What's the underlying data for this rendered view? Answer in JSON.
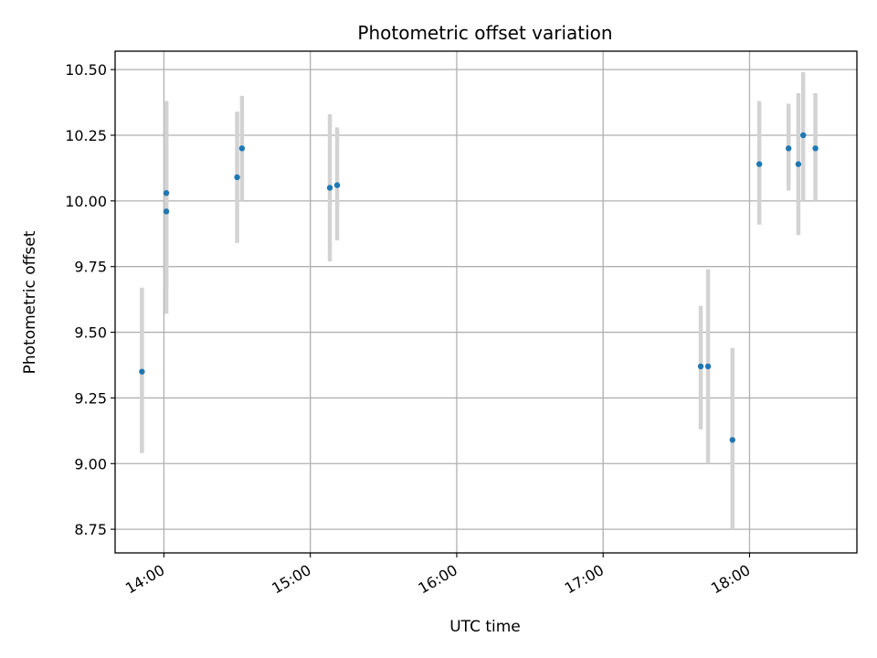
{
  "chart_data": {
    "type": "scatter",
    "title": "Photometric offset variation",
    "xlabel": "UTC time",
    "ylabel": "Photometric offset",
    "x_axis_type": "time",
    "xlim": [
      "13:40",
      "18:44"
    ],
    "ylim": [
      8.66,
      10.57
    ],
    "x_ticks": [
      "14:00",
      "15:00",
      "16:00",
      "17:00",
      "18:00"
    ],
    "y_ticks": [
      "8.75",
      "9.00",
      "9.25",
      "9.50",
      "9.75",
      "10.00",
      "10.25",
      "10.50"
    ],
    "grid": true,
    "marker_color": "#1f77b4",
    "errorbar_color": "#d3d3d3",
    "series": [
      {
        "points": [
          {
            "x": "13:51",
            "y": 9.35,
            "yerr_low": 9.04,
            "yerr_high": 9.67
          },
          {
            "x": "14:01",
            "y": 9.96,
            "yerr_low": 9.57,
            "yerr_high": 10.38
          },
          {
            "x": "14:01",
            "y": 10.03,
            "yerr_low": 9.67,
            "yerr_high": 10.38
          },
          {
            "x": "14:30",
            "y": 10.09,
            "yerr_low": 9.84,
            "yerr_high": 10.34
          },
          {
            "x": "14:32",
            "y": 10.2,
            "yerr_low": 10.0,
            "yerr_high": 10.4
          },
          {
            "x": "15:08",
            "y": 10.05,
            "yerr_low": 9.77,
            "yerr_high": 10.33
          },
          {
            "x": "15:11",
            "y": 10.06,
            "yerr_low": 9.85,
            "yerr_high": 10.28
          },
          {
            "x": "17:40",
            "y": 9.37,
            "yerr_low": 9.13,
            "yerr_high": 9.6
          },
          {
            "x": "17:43",
            "y": 9.37,
            "yerr_low": 9.0,
            "yerr_high": 9.74
          },
          {
            "x": "17:53",
            "y": 9.09,
            "yerr_low": 8.75,
            "yerr_high": 9.44
          },
          {
            "x": "18:04",
            "y": 10.14,
            "yerr_low": 9.91,
            "yerr_high": 10.38
          },
          {
            "x": "18:16",
            "y": 10.2,
            "yerr_low": 10.04,
            "yerr_high": 10.37
          },
          {
            "x": "18:20",
            "y": 10.14,
            "yerr_low": 9.87,
            "yerr_high": 10.41
          },
          {
            "x": "18:22",
            "y": 10.25,
            "yerr_low": 10.0,
            "yerr_high": 10.49
          },
          {
            "x": "18:27",
            "y": 10.2,
            "yerr_low": 10.0,
            "yerr_high": 10.41
          }
        ]
      }
    ]
  }
}
